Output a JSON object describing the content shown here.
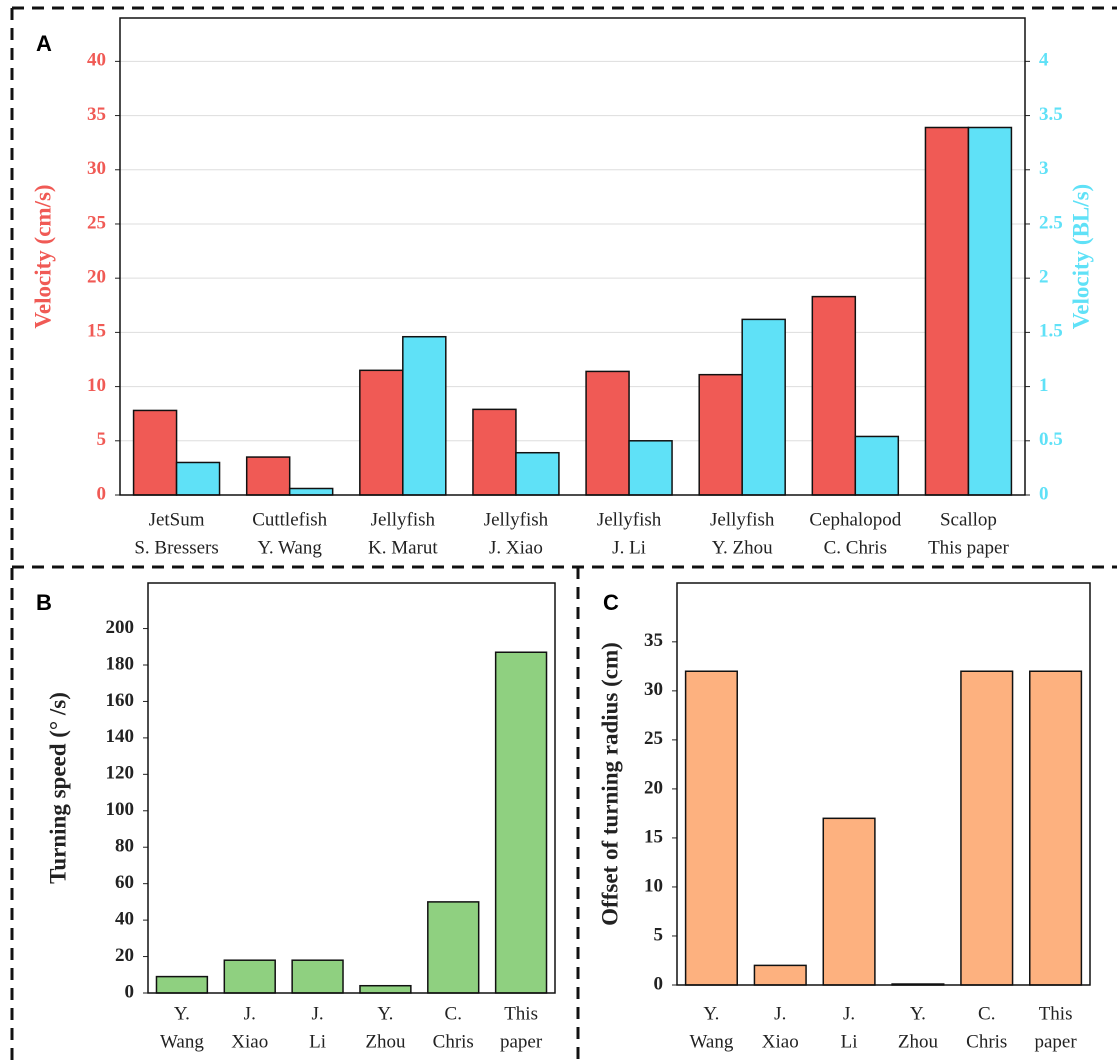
{
  "chart_data": [
    {
      "type": "bar",
      "label": "A",
      "categories": [
        [
          "JetSum",
          "S. Bressers"
        ],
        [
          "Cuttlefish",
          "Y. Wang"
        ],
        [
          "Jellyfish",
          "K. Marut"
        ],
        [
          "Jellyfish",
          "J. Xiao"
        ],
        [
          "Jellyfish",
          "J. Li"
        ],
        [
          "Jellyfish",
          "Y. Zhou"
        ],
        [
          "Cephalopod",
          "C. Chris"
        ],
        [
          "Scallop",
          "This paper"
        ]
      ],
      "ylabel": "Velocity (cm/s)",
      "y2label": "Velocity (BL/s)",
      "series": [
        {
          "color": "#f05a55",
          "values": [
            7.8,
            3.5,
            11.5,
            7.9,
            11.4,
            11.1,
            18.3,
            33.9
          ]
        },
        {
          "color": "#5fe1f7",
          "axis": "y2",
          "values": [
            0.3,
            0.06,
            1.46,
            0.39,
            0.5,
            1.62,
            0.54,
            3.39
          ]
        }
      ],
      "ylim": [
        0,
        44
      ],
      "yticks": [
        0,
        5,
        10,
        15,
        20,
        25,
        30,
        35,
        40
      ],
      "y2lim": [
        0,
        4.4
      ],
      "y2ticks": [
        0,
        0.5,
        1,
        1.5,
        2,
        2.5,
        3,
        3.5,
        4
      ],
      "grid": true
    },
    {
      "type": "bar",
      "label": "B",
      "categories": [
        [
          "Y.",
          "Wang"
        ],
        [
          "J.",
          "Xiao"
        ],
        [
          "J.",
          "Li"
        ],
        [
          "Y.",
          "Zhou"
        ],
        [
          "C.",
          "Chris"
        ],
        [
          "This",
          "paper"
        ]
      ],
      "ylabel": "Turning speed (°  /s)",
      "series": [
        {
          "color": "#8fd080",
          "values": [
            9,
            18,
            18,
            4,
            50,
            187
          ]
        }
      ],
      "ylim": [
        0,
        225
      ],
      "yticks": [
        0,
        20,
        40,
        60,
        80,
        100,
        120,
        140,
        160,
        180,
        200
      ],
      "grid": false
    },
    {
      "type": "bar",
      "label": "C",
      "categories": [
        [
          "Y.",
          "Wang"
        ],
        [
          "J.",
          "Xiao"
        ],
        [
          "J.",
          "Li"
        ],
        [
          "Y.",
          "Zhou"
        ],
        [
          "C.",
          "Chris"
        ],
        [
          "This",
          "paper"
        ]
      ],
      "ylabel": "Offset of turning radius (cm)",
      "series": [
        {
          "color": "#fdb17f",
          "values": [
            32,
            2,
            17,
            0.1,
            32,
            32
          ]
        }
      ],
      "ylim": [
        0,
        41
      ],
      "yticks": [
        0,
        5,
        10,
        15,
        20,
        25,
        30,
        35
      ],
      "grid": false
    }
  ]
}
